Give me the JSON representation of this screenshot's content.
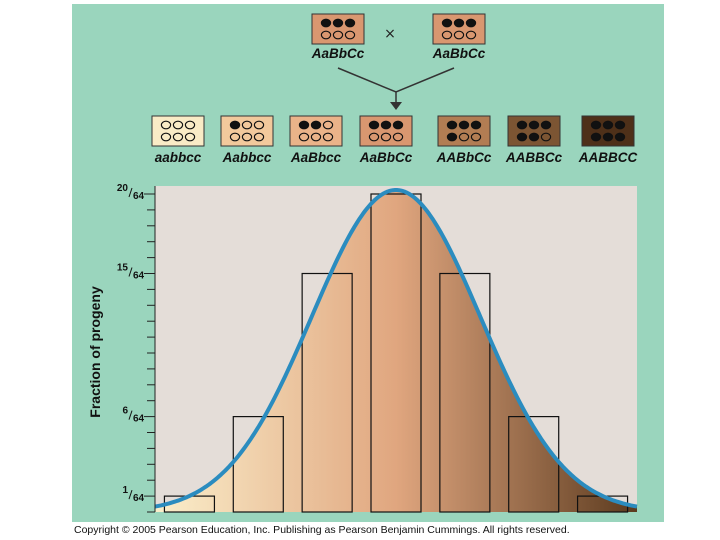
{
  "parents": {
    "left": {
      "genotype": "AaBbCc",
      "dark_alleles": 3
    },
    "right": {
      "genotype": "AaBbCc",
      "dark_alleles": 3
    },
    "cross_symbol": "×"
  },
  "offspring": [
    {
      "genotype": "aabbcc",
      "dark_alleles": 0,
      "color": "#f9ebc6"
    },
    {
      "genotype": "Aabbcc",
      "dark_alleles": 1,
      "color": "#f2c99c"
    },
    {
      "genotype": "AaBbcc",
      "dark_alleles": 2,
      "color": "#eab389"
    },
    {
      "genotype": "AaBbCc",
      "dark_alleles": 3,
      "color": "#d99770"
    },
    {
      "genotype": "AABbCc",
      "dark_alleles": 4,
      "color": "#b27d53"
    },
    {
      "genotype": "AABBCc",
      "dark_alleles": 5,
      "color": "#7c5533"
    },
    {
      "genotype": "AABBCC",
      "dark_alleles": 6,
      "color": "#4e3019"
    }
  ],
  "chart_data": {
    "type": "bar",
    "categories": [
      "aabbcc",
      "Aabbcc",
      "AaBbcc",
      "AaBbCc",
      "AABbCc",
      "AABBCc",
      "AABBCC"
    ],
    "values": [
      1,
      6,
      15,
      20,
      15,
      6,
      1
    ],
    "ylabel": "Fraction of progeny",
    "ylim": [
      0,
      20
    ],
    "yticks": [
      {
        "value": 1,
        "num": "1",
        "den": "64"
      },
      {
        "value": 6,
        "num": "6",
        "den": "64"
      },
      {
        "value": 15,
        "num": "15",
        "den": "64"
      },
      {
        "value": 20,
        "num": "20",
        "den": "64"
      }
    ],
    "curve": "normal distribution overlay",
    "curve_color": "#2b8cbf",
    "gradient": [
      "#fbefcb",
      "#e0a67f",
      "#5b3a1e"
    ]
  },
  "copyright": "Copyright © 2005 Pearson Education, Inc. Publishing as Pearson Benjamin Cummings. All rights reserved."
}
